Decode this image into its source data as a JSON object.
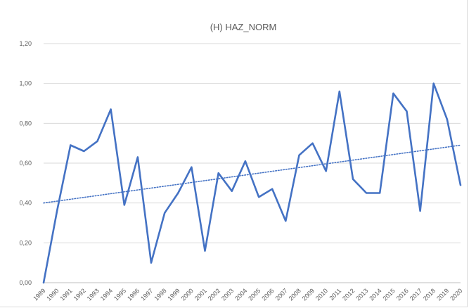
{
  "chart_data": {
    "type": "line",
    "title": "(H) HAZ_NORM",
    "xlabel": "",
    "ylabel": "",
    "x": [
      "1989",
      "1990",
      "1991",
      "1992",
      "1993",
      "1994",
      "1995",
      "1996",
      "1997",
      "1998",
      "1999",
      "2000",
      "2001",
      "2002",
      "2003",
      "2004",
      "2005",
      "2006",
      "2007",
      "2008",
      "2009",
      "2010",
      "2011",
      "2012",
      "2013",
      "2014",
      "2015",
      "2016",
      "2017",
      "2018",
      "2019",
      "2020"
    ],
    "series": [
      {
        "values": [
          0.0,
          0.36,
          0.69,
          0.66,
          0.71,
          0.87,
          0.39,
          0.63,
          0.1,
          0.35,
          0.45,
          0.58,
          0.16,
          0.55,
          0.46,
          0.61,
          0.43,
          0.47,
          0.31,
          0.64,
          0.7,
          0.56,
          0.96,
          0.52,
          0.45,
          0.45,
          0.95,
          0.86,
          0.36,
          1.0,
          0.82,
          0.49
        ],
        "color": "#4472c4"
      }
    ],
    "trendline": {
      "type": "linear",
      "start": 0.4,
      "end": 0.69,
      "style": "dotted",
      "color": "#4472c4"
    },
    "ylim": [
      0,
      1.2
    ],
    "yticks": [
      "0,00",
      "0,20",
      "0,40",
      "0,60",
      "0,80",
      "1,00",
      "1,20"
    ],
    "grid": true,
    "legend": "none"
  }
}
